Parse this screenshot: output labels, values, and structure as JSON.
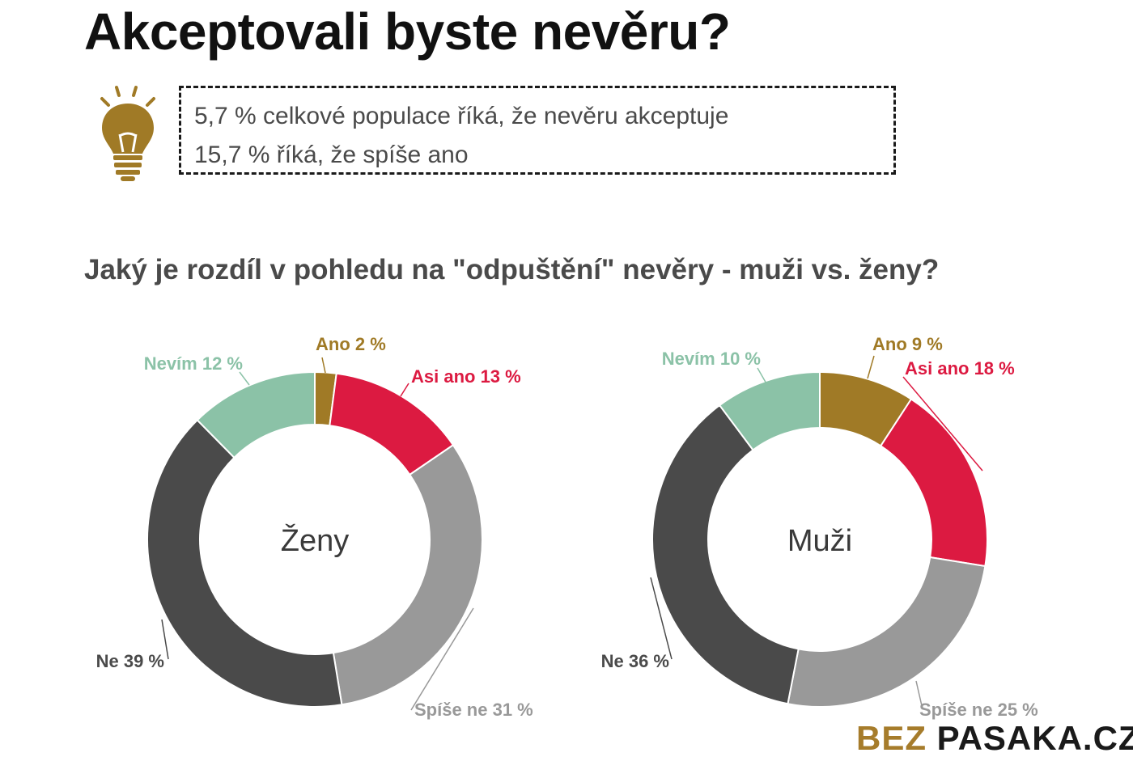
{
  "title": "Akceptovali byste nevěru?",
  "info": {
    "line1": "5,7 % celkové populace říká, že nevěru akceptuje",
    "line2": "15,7 % říká, že spíše ano"
  },
  "subtitle": "Jaký je rozdíl v pohledu na \"odpuštění\" nevěry - muži vs. ženy?",
  "brand": {
    "part1": "BEZ ",
    "part2": "PASAKA.CZ"
  },
  "colors": {
    "ano": "#a07a26",
    "asi_ano": "#dc1a41",
    "spise_ne": "#999999",
    "ne": "#4a4a4a",
    "nevim": "#8bc2a7"
  },
  "chart_data": [
    {
      "type": "pie",
      "center_label": "Ženy",
      "slices": [
        {
          "label": "Ano 2 %",
          "value": 2,
          "color": "#a07a26"
        },
        {
          "label": "Asi ano 13 %",
          "value": 13,
          "color": "#dc1a41"
        },
        {
          "label": "Spíše ne 31 %",
          "value": 31,
          "color": "#999999"
        },
        {
          "label": "Ne 39 %",
          "value": 39,
          "color": "#4a4a4a"
        },
        {
          "label": "Nevím 12 %",
          "value": 12,
          "color": "#8bc2a7"
        }
      ]
    },
    {
      "type": "pie",
      "center_label": "Muži",
      "slices": [
        {
          "label": "Ano 9 %",
          "value": 9,
          "color": "#a07a26"
        },
        {
          "label": "Asi ano 18 %",
          "value": 18,
          "color": "#dc1a41"
        },
        {
          "label": "Spíše ne 25 %",
          "value": 25,
          "color": "#999999"
        },
        {
          "label": "Ne 36 %",
          "value": 36,
          "color": "#4a4a4a"
        },
        {
          "label": "Nevím 10 %",
          "value": 10,
          "color": "#8bc2a7"
        }
      ]
    }
  ]
}
